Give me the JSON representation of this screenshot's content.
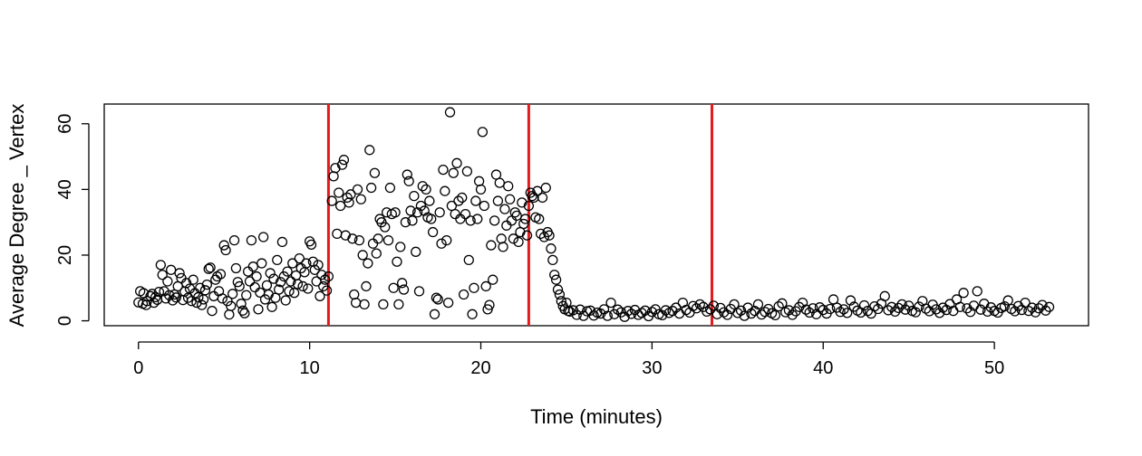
{
  "chart_data": {
    "type": "scatter",
    "title": "",
    "xlabel": "Time (minutes)",
    "ylabel": "Average Degree _ Vertex",
    "xlim": [
      -2,
      55.5
    ],
    "ylim": [
      -1.5,
      66
    ],
    "x_ticks": [
      0,
      10,
      20,
      30,
      40,
      50
    ],
    "y_ticks": [
      0,
      20,
      40,
      60
    ],
    "grid": false,
    "legend": "none",
    "marker": "open-circle",
    "marker_color": "#000000",
    "vlines": [
      {
        "x": 11.1,
        "color": "#e41a1c"
      },
      {
        "x": 22.8,
        "color": "#e41a1c"
      },
      {
        "x": 33.5,
        "color": "#e41a1c"
      }
    ],
    "points": [
      [
        0.0,
        5.6
      ],
      [
        0.1,
        9.0
      ],
      [
        0.25,
        5.2
      ],
      [
        0.3,
        8.4
      ],
      [
        0.45,
        4.8
      ],
      [
        0.5,
        6.0
      ],
      [
        0.7,
        7.5
      ],
      [
        0.8,
        8.2
      ],
      [
        0.9,
        5.5
      ],
      [
        1.0,
        7.2
      ],
      [
        1.1,
        6.4
      ],
      [
        1.2,
        8.8
      ],
      [
        1.3,
        17.0
      ],
      [
        1.4,
        14.0
      ],
      [
        1.5,
        9.0
      ],
      [
        1.6,
        6.8
      ],
      [
        1.7,
        12.0
      ],
      [
        1.8,
        7.8
      ],
      [
        1.9,
        15.5
      ],
      [
        2.0,
        6.2
      ],
      [
        2.1,
        8.0
      ],
      [
        2.2,
        7.1
      ],
      [
        2.3,
        10.5
      ],
      [
        2.4,
        14.5
      ],
      [
        2.5,
        13.0
      ],
      [
        2.6,
        6.3
      ],
      [
        2.7,
        8.9
      ],
      [
        2.8,
        11.5
      ],
      [
        2.9,
        7.0
      ],
      [
        3.0,
        9.8
      ],
      [
        3.1,
        6.0
      ],
      [
        3.2,
        12.5
      ],
      [
        3.3,
        8.4
      ],
      [
        3.4,
        5.5
      ],
      [
        3.5,
        7.2
      ],
      [
        3.6,
        10.0
      ],
      [
        3.7,
        4.8
      ],
      [
        3.8,
        6.5
      ],
      [
        3.9,
        9.3
      ],
      [
        4.0,
        11.0
      ],
      [
        4.1,
        15.8
      ],
      [
        4.2,
        16.2
      ],
      [
        4.3,
        3.0
      ],
      [
        4.4,
        7.5
      ],
      [
        4.5,
        12.5
      ],
      [
        4.6,
        13.5
      ],
      [
        4.7,
        9.0
      ],
      [
        4.8,
        14.2
      ],
      [
        4.9,
        6.8
      ],
      [
        5.0,
        23.0
      ],
      [
        5.1,
        21.5
      ],
      [
        5.2,
        6.0
      ],
      [
        5.3,
        1.9
      ],
      [
        5.4,
        4.5
      ],
      [
        5.5,
        8.2
      ],
      [
        5.6,
        24.5
      ],
      [
        5.7,
        16.0
      ],
      [
        5.8,
        11.8
      ],
      [
        5.9,
        10.5
      ],
      [
        6.0,
        5.2
      ],
      [
        6.1,
        3.1
      ],
      [
        6.2,
        2.3
      ],
      [
        6.3,
        7.8
      ],
      [
        6.4,
        15.0
      ],
      [
        6.5,
        12.0
      ],
      [
        6.6,
        24.5
      ],
      [
        6.7,
        16.5
      ],
      [
        6.8,
        10.2
      ],
      [
        6.9,
        13.5
      ],
      [
        7.0,
        3.5
      ],
      [
        7.1,
        8.6
      ],
      [
        7.2,
        17.5
      ],
      [
        7.3,
        25.5
      ],
      [
        7.4,
        6.5
      ],
      [
        7.5,
        10.8
      ],
      [
        7.6,
        8.0
      ],
      [
        7.7,
        14.5
      ],
      [
        7.8,
        4.2
      ],
      [
        7.9,
        12.8
      ],
      [
        8.0,
        7.0
      ],
      [
        8.1,
        18.5
      ],
      [
        8.2,
        9.5
      ],
      [
        8.3,
        11.8
      ],
      [
        8.4,
        24.0
      ],
      [
        8.5,
        13.5
      ],
      [
        8.6,
        6.2
      ],
      [
        8.7,
        15.0
      ],
      [
        8.8,
        9.0
      ],
      [
        8.9,
        12.0
      ],
      [
        9.0,
        17.5
      ],
      [
        9.1,
        8.5
      ],
      [
        9.2,
        13.8
      ],
      [
        9.3,
        11.2
      ],
      [
        9.4,
        19.0
      ],
      [
        9.5,
        16.0
      ],
      [
        9.6,
        10.5
      ],
      [
        9.7,
        14.8
      ],
      [
        9.8,
        17.5
      ],
      [
        9.9,
        9.8
      ],
      [
        10.0,
        24.2
      ],
      [
        10.1,
        23.2
      ],
      [
        10.2,
        18.0
      ],
      [
        10.3,
        15.5
      ],
      [
        10.4,
        12.0
      ],
      [
        10.5,
        17.0
      ],
      [
        10.6,
        7.5
      ],
      [
        10.7,
        14.0
      ],
      [
        10.8,
        10.5
      ],
      [
        10.9,
        12.5
      ],
      [
        11.0,
        9.2
      ],
      [
        11.1,
        13.5
      ],
      [
        11.3,
        36.5
      ],
      [
        11.4,
        44.0
      ],
      [
        11.5,
        46.5
      ],
      [
        11.6,
        26.5
      ],
      [
        11.7,
        39.0
      ],
      [
        11.8,
        35.0
      ],
      [
        11.9,
        47.5
      ],
      [
        12.0,
        49.0
      ],
      [
        12.1,
        26.0
      ],
      [
        12.2,
        37.5
      ],
      [
        12.3,
        36.0
      ],
      [
        12.4,
        38.5
      ],
      [
        12.5,
        25.0
      ],
      [
        12.6,
        8.0
      ],
      [
        12.7,
        5.5
      ],
      [
        12.8,
        40.0
      ],
      [
        12.9,
        24.5
      ],
      [
        13.0,
        37.0
      ],
      [
        13.1,
        20.0
      ],
      [
        13.2,
        5.0
      ],
      [
        13.3,
        10.5
      ],
      [
        13.4,
        17.5
      ],
      [
        13.5,
        52.0
      ],
      [
        13.6,
        40.5
      ],
      [
        13.7,
        23.5
      ],
      [
        13.8,
        45.0
      ],
      [
        13.9,
        20.5
      ],
      [
        14.0,
        25.0
      ],
      [
        14.1,
        31.0
      ],
      [
        14.2,
        30.0
      ],
      [
        14.3,
        5.0
      ],
      [
        14.4,
        28.5
      ],
      [
        14.5,
        33.0
      ],
      [
        14.6,
        24.5
      ],
      [
        14.7,
        40.5
      ],
      [
        14.8,
        32.5
      ],
      [
        14.9,
        10.0
      ],
      [
        15.0,
        33.0
      ],
      [
        15.1,
        18.0
      ],
      [
        15.2,
        5.0
      ],
      [
        15.3,
        22.5
      ],
      [
        15.4,
        11.5
      ],
      [
        15.5,
        9.5
      ],
      [
        15.6,
        30.0
      ],
      [
        15.7,
        44.5
      ],
      [
        15.8,
        42.5
      ],
      [
        15.9,
        33.5
      ],
      [
        16.0,
        30.5
      ],
      [
        16.1,
        38.0
      ],
      [
        16.2,
        21.0
      ],
      [
        16.3,
        33.0
      ],
      [
        16.4,
        9.0
      ],
      [
        16.5,
        35.0
      ],
      [
        16.6,
        41.0
      ],
      [
        16.7,
        33.5
      ],
      [
        16.8,
        40.0
      ],
      [
        16.9,
        31.5
      ],
      [
        17.0,
        36.5
      ],
      [
        17.1,
        31.0
      ],
      [
        17.2,
        27.0
      ],
      [
        17.3,
        2.0
      ],
      [
        17.4,
        7.0
      ],
      [
        17.5,
        6.5
      ],
      [
        17.6,
        33.0
      ],
      [
        17.7,
        23.5
      ],
      [
        17.8,
        46.0
      ],
      [
        17.9,
        39.5
      ],
      [
        18.0,
        24.5
      ],
      [
        18.1,
        5.5
      ],
      [
        18.2,
        63.5
      ],
      [
        18.3,
        35.0
      ],
      [
        18.4,
        45.0
      ],
      [
        18.5,
        32.5
      ],
      [
        18.6,
        48.0
      ],
      [
        18.7,
        36.5
      ],
      [
        18.8,
        31.0
      ],
      [
        18.9,
        37.5
      ],
      [
        19.0,
        8.0
      ],
      [
        19.1,
        32.5
      ],
      [
        19.2,
        45.5
      ],
      [
        19.3,
        18.5
      ],
      [
        19.4,
        30.5
      ],
      [
        19.5,
        2.0
      ],
      [
        19.6,
        10.0
      ],
      [
        19.7,
        36.5
      ],
      [
        19.8,
        31.0
      ],
      [
        19.9,
        42.5
      ],
      [
        20.0,
        40.0
      ],
      [
        20.1,
        57.5
      ],
      [
        20.2,
        35.0
      ],
      [
        20.3,
        10.5
      ],
      [
        20.4,
        3.5
      ],
      [
        20.5,
        4.8
      ],
      [
        20.6,
        23.0
      ],
      [
        20.7,
        12.5
      ],
      [
        20.8,
        30.5
      ],
      [
        20.9,
        44.5
      ],
      [
        21.0,
        36.5
      ],
      [
        21.1,
        42.0
      ],
      [
        21.2,
        25.0
      ],
      [
        21.3,
        22.5
      ],
      [
        21.4,
        34.0
      ],
      [
        21.5,
        29.0
      ],
      [
        21.6,
        41.0
      ],
      [
        21.7,
        37.0
      ],
      [
        21.8,
        30.5
      ],
      [
        21.9,
        25.0
      ],
      [
        22.0,
        33.0
      ],
      [
        22.1,
        32.0
      ],
      [
        22.2,
        24.0
      ],
      [
        22.3,
        27.0
      ],
      [
        22.4,
        36.0
      ],
      [
        22.5,
        29.5
      ],
      [
        22.6,
        31.0
      ],
      [
        22.7,
        26.0
      ],
      [
        22.8,
        35.0
      ],
      [
        22.9,
        39.0
      ],
      [
        23.0,
        38.0
      ],
      [
        23.1,
        37.5
      ],
      [
        23.2,
        31.5
      ],
      [
        23.3,
        39.5
      ],
      [
        23.4,
        31.0
      ],
      [
        23.5,
        26.5
      ],
      [
        23.6,
        37.5
      ],
      [
        23.7,
        25.5
      ],
      [
        23.8,
        40.5
      ],
      [
        23.9,
        27.0
      ],
      [
        24.0,
        26.0
      ],
      [
        24.1,
        22.0
      ],
      [
        24.2,
        18.5
      ],
      [
        24.3,
        14.0
      ],
      [
        24.4,
        12.5
      ],
      [
        24.5,
        9.5
      ],
      [
        24.6,
        8.0
      ],
      [
        24.7,
        6.0
      ],
      [
        24.8,
        4.5
      ],
      [
        24.9,
        3.5
      ],
      [
        25.0,
        5.5
      ],
      [
        25.1,
        3.0
      ],
      [
        25.2,
        2.8
      ],
      [
        25.4,
        3.2
      ],
      [
        25.6,
        1.8
      ],
      [
        25.8,
        3.4
      ],
      [
        26.0,
        1.5
      ],
      [
        26.2,
        2.9
      ],
      [
        26.4,
        3.1
      ],
      [
        26.6,
        1.6
      ],
      [
        26.8,
        2.5
      ],
      [
        27.0,
        2.2
      ],
      [
        27.2,
        3.5
      ],
      [
        27.4,
        1.5
      ],
      [
        27.6,
        5.5
      ],
      [
        27.8,
        2.0
      ],
      [
        28.0,
        3.4
      ],
      [
        28.2,
        2.6
      ],
      [
        28.4,
        1.2
      ],
      [
        28.6,
        3.0
      ],
      [
        28.8,
        2.1
      ],
      [
        29.0,
        3.3
      ],
      [
        29.2,
        1.8
      ],
      [
        29.4,
        2.4
      ],
      [
        29.6,
        3.1
      ],
      [
        29.8,
        1.4
      ],
      [
        30.0,
        2.7
      ],
      [
        30.2,
        3.5
      ],
      [
        30.4,
        2.0
      ],
      [
        30.6,
        1.7
      ],
      [
        30.8,
        3.2
      ],
      [
        31.0,
        2.4
      ],
      [
        31.2,
        3.0
      ],
      [
        31.4,
        4.0
      ],
      [
        31.6,
        2.2
      ],
      [
        31.8,
        5.5
      ],
      [
        32.0,
        3.3
      ],
      [
        32.2,
        2.5
      ],
      [
        32.4,
        4.5
      ],
      [
        32.6,
        3.8
      ],
      [
        32.8,
        5.0
      ],
      [
        33.0,
        4.2
      ],
      [
        33.2,
        2.8
      ],
      [
        33.4,
        3.5
      ],
      [
        33.6,
        4.6
      ],
      [
        33.8,
        2.0
      ],
      [
        34.0,
        3.9
      ],
      [
        34.2,
        2.6
      ],
      [
        34.4,
        1.8
      ],
      [
        34.6,
        3.6
      ],
      [
        34.8,
        5.0
      ],
      [
        35.0,
        2.4
      ],
      [
        35.2,
        3.1
      ],
      [
        35.4,
        1.5
      ],
      [
        35.6,
        4.0
      ],
      [
        35.8,
        2.2
      ],
      [
        36.0,
        3.0
      ],
      [
        36.2,
        5.0
      ],
      [
        36.4,
        1.9
      ],
      [
        36.6,
        2.7
      ],
      [
        36.8,
        3.6
      ],
      [
        37.0,
        2.3
      ],
      [
        37.2,
        1.7
      ],
      [
        37.4,
        4.4
      ],
      [
        37.6,
        5.3
      ],
      [
        37.8,
        2.6
      ],
      [
        38.0,
        3.2
      ],
      [
        38.2,
        1.8
      ],
      [
        38.4,
        2.9
      ],
      [
        38.6,
        4.2
      ],
      [
        38.8,
        5.5
      ],
      [
        39.0,
        3.4
      ],
      [
        39.2,
        2.5
      ],
      [
        39.4,
        3.8
      ],
      [
        39.6,
        2.0
      ],
      [
        39.8,
        4.1
      ],
      [
        40.0,
        3.3
      ],
      [
        40.2,
        2.2
      ],
      [
        40.4,
        3.6
      ],
      [
        40.6,
        6.5
      ],
      [
        40.8,
        4.0
      ],
      [
        41.0,
        2.7
      ],
      [
        41.2,
        3.5
      ],
      [
        41.4,
        2.4
      ],
      [
        41.6,
        6.2
      ],
      [
        41.8,
        4.3
      ],
      [
        42.0,
        3.1
      ],
      [
        42.2,
        2.5
      ],
      [
        42.4,
        4.7
      ],
      [
        42.6,
        3.0
      ],
      [
        42.8,
        2.2
      ],
      [
        43.0,
        4.4
      ],
      [
        43.2,
        3.6
      ],
      [
        43.4,
        5.2
      ],
      [
        43.6,
        7.5
      ],
      [
        43.8,
        3.2
      ],
      [
        44.0,
        4.2
      ],
      [
        44.2,
        2.8
      ],
      [
        44.4,
        3.9
      ],
      [
        44.6,
        5.0
      ],
      [
        44.8,
        3.4
      ],
      [
        45.0,
        4.6
      ],
      [
        45.2,
        3.0
      ],
      [
        45.4,
        2.6
      ],
      [
        45.6,
        4.3
      ],
      [
        45.8,
        6.0
      ],
      [
        46.0,
        3.7
      ],
      [
        46.2,
        2.9
      ],
      [
        46.4,
        4.9
      ],
      [
        46.6,
        3.5
      ],
      [
        46.8,
        2.4
      ],
      [
        47.0,
        4.0
      ],
      [
        47.2,
        3.3
      ],
      [
        47.4,
        5.1
      ],
      [
        47.6,
        3.0
      ],
      [
        47.8,
        6.5
      ],
      [
        48.0,
        4.2
      ],
      [
        48.2,
        8.5
      ],
      [
        48.4,
        3.8
      ],
      [
        48.6,
        2.7
      ],
      [
        48.8,
        4.6
      ],
      [
        49.0,
        9.0
      ],
      [
        49.2,
        3.4
      ],
      [
        49.4,
        5.2
      ],
      [
        49.6,
        2.8
      ],
      [
        49.8,
        4.1
      ],
      [
        50.0,
        3.0
      ],
      [
        50.2,
        2.5
      ],
      [
        50.4,
        3.9
      ],
      [
        50.6,
        4.4
      ],
      [
        50.8,
        6.2
      ],
      [
        51.0,
        3.6
      ],
      [
        51.2,
        2.9
      ],
      [
        51.4,
        4.5
      ],
      [
        51.6,
        3.3
      ],
      [
        51.8,
        5.5
      ],
      [
        52.0,
        3.0
      ],
      [
        52.2,
        4.0
      ],
      [
        52.4,
        2.6
      ],
      [
        52.6,
        3.8
      ],
      [
        52.8,
        4.8
      ],
      [
        53.0,
        3.1
      ],
      [
        53.2,
        4.2
      ]
    ]
  }
}
